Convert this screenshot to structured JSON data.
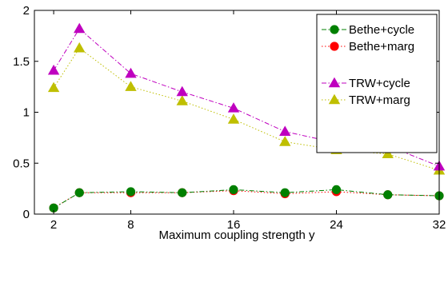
{
  "chart_data": {
    "type": "line",
    "xlabel": "Maximum coupling strength y",
    "ylabel": "",
    "xlim": [
      0.5,
      32
    ],
    "ylim": [
      0,
      2
    ],
    "xticks": [
      2,
      8,
      16,
      24,
      32
    ],
    "yticks": [
      0,
      0.5,
      1,
      1.5,
      2
    ],
    "ytick_labels": [
      "0",
      "0.5",
      "1",
      "1.5",
      "2"
    ],
    "legend_position": "top-right",
    "series": [
      {
        "name": "Bethe+cycle",
        "color": "#008000",
        "marker": "circle",
        "line_style": "dash-dot",
        "x": [
          2,
          4,
          8,
          12,
          16,
          20,
          24,
          28,
          32
        ],
        "values": [
          0.06,
          0.21,
          0.22,
          0.21,
          0.24,
          0.21,
          0.24,
          0.19,
          0.18
        ]
      },
      {
        "name": "Bethe+marg",
        "color": "#ff0000",
        "marker": "circle",
        "line_style": "dotted",
        "x": [
          2,
          4,
          8,
          12,
          16,
          20,
          24,
          28,
          32
        ],
        "values": [
          0.06,
          0.21,
          0.21,
          0.21,
          0.23,
          0.2,
          0.22,
          0.19,
          0.18
        ]
      },
      {
        "name": "TRW+cycle",
        "color": "#bf00bf",
        "marker": "triangle",
        "line_style": "dash-dot",
        "x": [
          2,
          4,
          8,
          12,
          16,
          20,
          24,
          28,
          32
        ],
        "values": [
          1.41,
          1.82,
          1.38,
          1.2,
          1.04,
          0.81,
          0.7,
          0.67,
          0.47
        ]
      },
      {
        "name": "TRW+marg",
        "color": "#bfbf00",
        "marker": "triangle",
        "line_style": "dotted",
        "x": [
          2,
          4,
          8,
          12,
          16,
          20,
          24,
          28,
          32
        ],
        "values": [
          1.24,
          1.63,
          1.25,
          1.11,
          0.93,
          0.71,
          0.63,
          0.59,
          0.43
        ]
      }
    ]
  }
}
